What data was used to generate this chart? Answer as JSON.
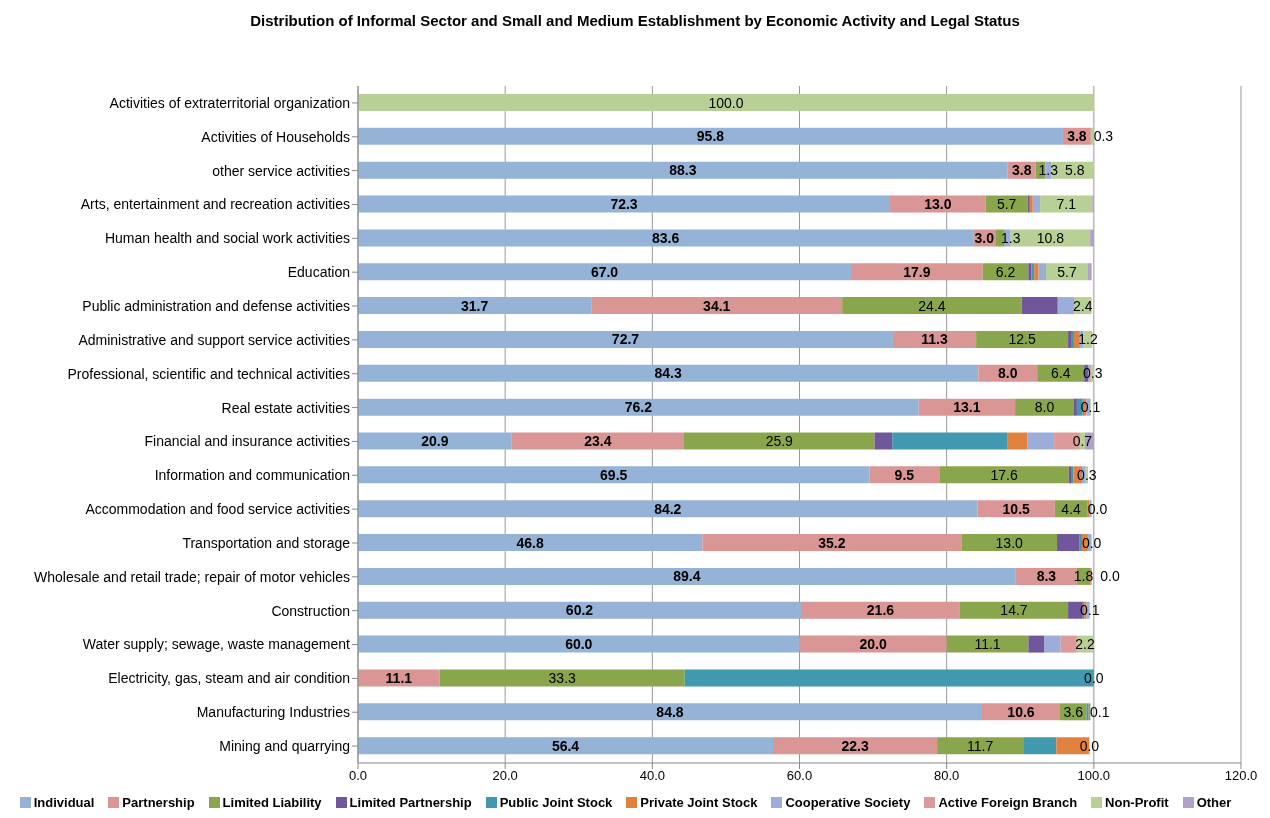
{
  "chart_data": {
    "type": "bar",
    "orientation": "horizontal",
    "stacked": true,
    "title": "Distribution of Informal Sector and Small and Medium Establishment by Economic Activity and Legal Status",
    "categories": [
      "Activities of extraterritorial organization",
      "Activities of Households",
      "other service activities",
      "Arts, entertainment and recreation activities",
      "Human health and social work activities",
      "Education",
      "Public administration and defense activities",
      "Administrative and support service activities",
      "Professional, scientific and technical activities",
      "Real estate activities",
      "Financial and insurance activities",
      "Information and communication",
      "Accommodation and food service activities",
      "Transportation and storage",
      "Wholesale and retail trade; repair of motor vehicles",
      "Construction",
      "Water supply; sewage, waste management",
      "Electricity, gas, steam and air condition",
      "Manufacturing Industries",
      "Mining and quarrying"
    ],
    "series": [
      {
        "name": "Individual",
        "color": "#95b3d7",
        "values": [
          0,
          95.8,
          88.3,
          72.3,
          83.6,
          67.0,
          31.7,
          72.7,
          84.3,
          76.2,
          20.9,
          69.5,
          84.2,
          46.8,
          89.4,
          60.2,
          60.0,
          0,
          84.8,
          56.4
        ],
        "value_labels": [
          null,
          "95.8",
          "88.3",
          "72.3",
          "83.6",
          "67.0",
          "31.7",
          "72.7",
          "84.3",
          "76.2",
          "20.9",
          "69.5",
          "84.2",
          "46.8",
          "89.4",
          "60.2",
          "60.0",
          null,
          "84.8",
          "56.4"
        ]
      },
      {
        "name": "Partnership",
        "color": "#da9694",
        "values": [
          0,
          3.8,
          3.8,
          13.0,
          3.0,
          17.9,
          34.1,
          11.3,
          8.0,
          13.1,
          23.4,
          9.5,
          10.5,
          35.2,
          8.3,
          21.6,
          20.0,
          11.1,
          10.6,
          22.3
        ],
        "value_labels": [
          null,
          "3.8",
          "3.8",
          "13.0",
          "3.0",
          "17.9",
          "34.1",
          "11.3",
          "8.0",
          "13.1",
          "23.4",
          "9.5",
          "10.5",
          "35.2",
          "8.3",
          "21.6",
          "20.0",
          "11.1",
          "10.6",
          "22.3"
        ]
      },
      {
        "name": "Limited Liability",
        "color": "#8aa64c",
        "values": [
          0,
          0,
          1.3,
          5.7,
          1.3,
          6.2,
          24.4,
          12.5,
          6.4,
          8.0,
          25.9,
          17.6,
          4.4,
          13.0,
          1.8,
          14.7,
          11.1,
          33.3,
          3.6,
          11.7
        ],
        "value_labels": [
          null,
          null,
          "1.3",
          "5.7",
          "1.3",
          "6.2",
          "24.4",
          "12.5",
          "6.4",
          "8.0",
          "25.9",
          "17.6",
          "4.4",
          "13.0",
          "1.8",
          "14.7",
          "11.1",
          "33.3",
          "3.6",
          "11.7"
        ]
      },
      {
        "name": "Limited Partnership",
        "color": "#70569b",
        "values": [
          0,
          0,
          0,
          0.3,
          0,
          0.4,
          4.9,
          0.4,
          0.5,
          0.4,
          2.4,
          0.3,
          0,
          3.0,
          0,
          2.0,
          2.2,
          0,
          0,
          0
        ]
      },
      {
        "name": "Public Joint Stock",
        "color": "#4298ae",
        "values": [
          0,
          0,
          0,
          0,
          0,
          0.4,
          0,
          0.4,
          0,
          0.8,
          15.7,
          0.3,
          0,
          0.4,
          0,
          0.2,
          0,
          55.6,
          0.3,
          4.5
        ]
      },
      {
        "name": "Private Joint Stock",
        "color": "#e0823e",
        "values": [
          0,
          0,
          0,
          0.4,
          0,
          0.6,
          0,
          0.8,
          0,
          0.5,
          2.7,
          1.2,
          0.3,
          0.8,
          0.2,
          0.3,
          0,
          0,
          0.2,
          4.5
        ]
      },
      {
        "name": "Cooperative Society",
        "color": "#9badd8",
        "values": [
          0,
          0,
          0.8,
          1.0,
          0.8,
          1.0,
          2.2,
          0.5,
          0.3,
          0.5,
          3.6,
          0.5,
          0.3,
          0.5,
          0,
          0.4,
          2.2,
          0,
          0,
          0
        ]
      },
      {
        "name": "Active Foreign Branch",
        "color": "#dc9a9a",
        "values": [
          0,
          0,
          0,
          0,
          0,
          0,
          0,
          0,
          0.2,
          0,
          3.5,
          0,
          0,
          0,
          0,
          0,
          2.2,
          0,
          0,
          0
        ]
      },
      {
        "name": "Non-Profit",
        "color": "#b8cf96",
        "values": [
          100,
          0.3,
          5.8,
          7.1,
          10.8,
          5.7,
          2.4,
          1.2,
          0.3,
          0.1,
          0.7,
          0.3,
          0.0,
          0.0,
          0.0,
          0.1,
          2.2,
          0.0,
          0.1,
          0.0
        ],
        "value_labels": [
          "100.0",
          "0.3",
          "5.8",
          "7.1",
          "10.8",
          "5.7",
          "2.4",
          "1.2",
          "0.3",
          "0.1",
          "0.7",
          "0.3",
          "0.0",
          "0.0",
          "0.0",
          "0.1",
          "2.2",
          "0.0",
          "0.1",
          "0.0"
        ]
      },
      {
        "name": "Other",
        "color": "#b1a0c7",
        "values": [
          0,
          0,
          0,
          0.2,
          0.5,
          0.5,
          0,
          0,
          0,
          0,
          1.2,
          0,
          0,
          0,
          0,
          0,
          0,
          0,
          0,
          0
        ]
      }
    ],
    "xlim": [
      0,
      120
    ],
    "xticks": [
      {
        "value": 0,
        "label": "0.0"
      },
      {
        "value": 20,
        "label": "20.0"
      },
      {
        "value": 40,
        "label": "40.0"
      },
      {
        "value": 60,
        "label": "60.0"
      },
      {
        "value": 80,
        "label": "80.0"
      },
      {
        "value": 100,
        "label": "100.0"
      },
      {
        "value": 120,
        "label": "120.0"
      }
    ],
    "grid": "x",
    "legend": "bottom"
  }
}
